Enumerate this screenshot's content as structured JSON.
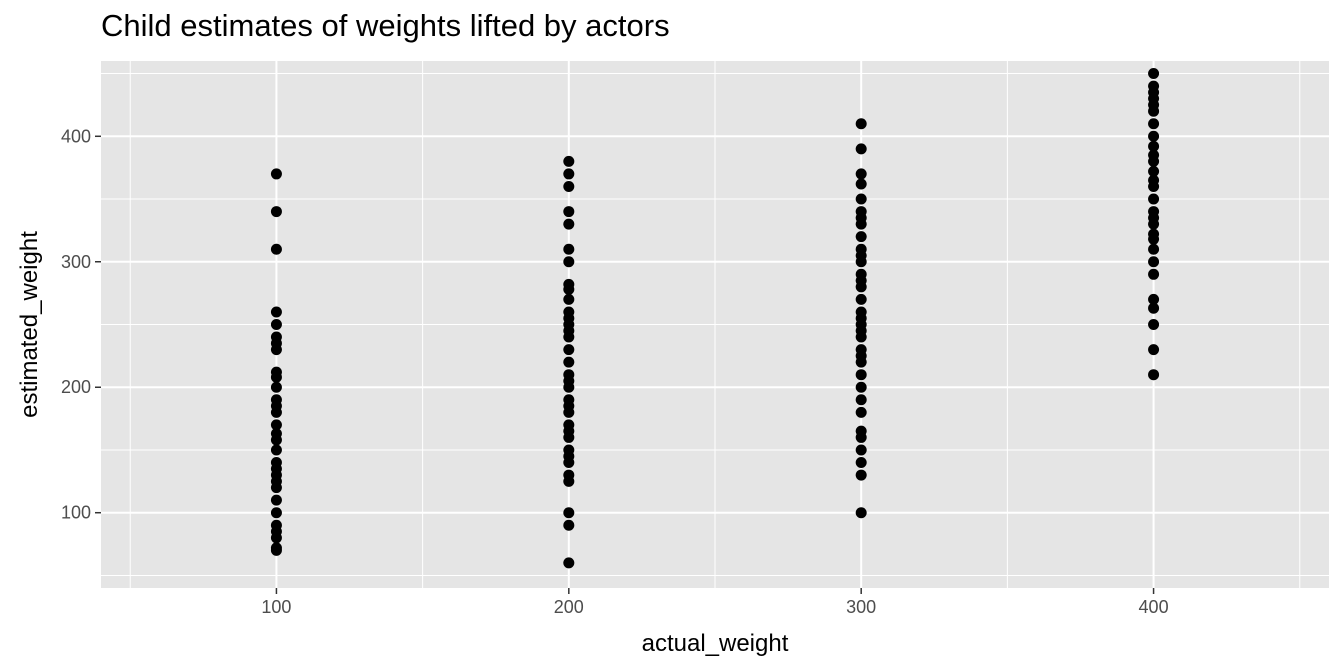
{
  "chart_data": {
    "type": "scatter",
    "title": "Child estimates of weights lifted by actors",
    "xlabel": "actual_weight",
    "ylabel": "estimated_weight",
    "xlim": [
      40,
      460
    ],
    "ylim": [
      40,
      460
    ],
    "xticks": [
      100,
      200,
      300,
      400
    ],
    "yticks": [
      100,
      200,
      300,
      400
    ],
    "grid": true,
    "colors": {
      "panel": "#E5E5E5",
      "grid": "#FFFFFF",
      "point": "#000000",
      "tick": "#4D4D4D"
    },
    "points": [
      {
        "x": 100,
        "y": 370
      },
      {
        "x": 100,
        "y": 340
      },
      {
        "x": 100,
        "y": 310
      },
      {
        "x": 100,
        "y": 260
      },
      {
        "x": 100,
        "y": 250
      },
      {
        "x": 100,
        "y": 240
      },
      {
        "x": 100,
        "y": 235
      },
      {
        "x": 100,
        "y": 230
      },
      {
        "x": 100,
        "y": 212
      },
      {
        "x": 100,
        "y": 208
      },
      {
        "x": 100,
        "y": 200
      },
      {
        "x": 100,
        "y": 190
      },
      {
        "x": 100,
        "y": 185
      },
      {
        "x": 100,
        "y": 180
      },
      {
        "x": 100,
        "y": 170
      },
      {
        "x": 100,
        "y": 163
      },
      {
        "x": 100,
        "y": 158
      },
      {
        "x": 100,
        "y": 150
      },
      {
        "x": 100,
        "y": 140
      },
      {
        "x": 100,
        "y": 135
      },
      {
        "x": 100,
        "y": 130
      },
      {
        "x": 100,
        "y": 125
      },
      {
        "x": 100,
        "y": 120
      },
      {
        "x": 100,
        "y": 110
      },
      {
        "x": 100,
        "y": 100
      },
      {
        "x": 100,
        "y": 90
      },
      {
        "x": 100,
        "y": 85
      },
      {
        "x": 100,
        "y": 80
      },
      {
        "x": 100,
        "y": 72
      },
      {
        "x": 100,
        "y": 70
      },
      {
        "x": 200,
        "y": 380
      },
      {
        "x": 200,
        "y": 370
      },
      {
        "x": 200,
        "y": 360
      },
      {
        "x": 200,
        "y": 340
      },
      {
        "x": 200,
        "y": 330
      },
      {
        "x": 200,
        "y": 310
      },
      {
        "x": 200,
        "y": 300
      },
      {
        "x": 200,
        "y": 282
      },
      {
        "x": 200,
        "y": 278
      },
      {
        "x": 200,
        "y": 270
      },
      {
        "x": 200,
        "y": 260
      },
      {
        "x": 200,
        "y": 255
      },
      {
        "x": 200,
        "y": 250
      },
      {
        "x": 200,
        "y": 245
      },
      {
        "x": 200,
        "y": 240
      },
      {
        "x": 200,
        "y": 230
      },
      {
        "x": 200,
        "y": 220
      },
      {
        "x": 200,
        "y": 210
      },
      {
        "x": 200,
        "y": 205
      },
      {
        "x": 200,
        "y": 200
      },
      {
        "x": 200,
        "y": 190
      },
      {
        "x": 200,
        "y": 185
      },
      {
        "x": 200,
        "y": 180
      },
      {
        "x": 200,
        "y": 170
      },
      {
        "x": 200,
        "y": 165
      },
      {
        "x": 200,
        "y": 160
      },
      {
        "x": 200,
        "y": 150
      },
      {
        "x": 200,
        "y": 145
      },
      {
        "x": 200,
        "y": 140
      },
      {
        "x": 200,
        "y": 130
      },
      {
        "x": 200,
        "y": 125
      },
      {
        "x": 200,
        "y": 100
      },
      {
        "x": 200,
        "y": 90
      },
      {
        "x": 200,
        "y": 60
      },
      {
        "x": 300,
        "y": 410
      },
      {
        "x": 300,
        "y": 390
      },
      {
        "x": 300,
        "y": 370
      },
      {
        "x": 300,
        "y": 362
      },
      {
        "x": 300,
        "y": 350
      },
      {
        "x": 300,
        "y": 340
      },
      {
        "x": 300,
        "y": 335
      },
      {
        "x": 300,
        "y": 330
      },
      {
        "x": 300,
        "y": 320
      },
      {
        "x": 300,
        "y": 310
      },
      {
        "x": 300,
        "y": 305
      },
      {
        "x": 300,
        "y": 300
      },
      {
        "x": 300,
        "y": 290
      },
      {
        "x": 300,
        "y": 285
      },
      {
        "x": 300,
        "y": 280
      },
      {
        "x": 300,
        "y": 270
      },
      {
        "x": 300,
        "y": 260
      },
      {
        "x": 300,
        "y": 255
      },
      {
        "x": 300,
        "y": 250
      },
      {
        "x": 300,
        "y": 245
      },
      {
        "x": 300,
        "y": 240
      },
      {
        "x": 300,
        "y": 230
      },
      {
        "x": 300,
        "y": 225
      },
      {
        "x": 300,
        "y": 220
      },
      {
        "x": 300,
        "y": 210
      },
      {
        "x": 300,
        "y": 200
      },
      {
        "x": 300,
        "y": 190
      },
      {
        "x": 300,
        "y": 180
      },
      {
        "x": 300,
        "y": 165
      },
      {
        "x": 300,
        "y": 160
      },
      {
        "x": 300,
        "y": 150
      },
      {
        "x": 300,
        "y": 140
      },
      {
        "x": 300,
        "y": 130
      },
      {
        "x": 300,
        "y": 100
      },
      {
        "x": 400,
        "y": 450
      },
      {
        "x": 400,
        "y": 440
      },
      {
        "x": 400,
        "y": 435
      },
      {
        "x": 400,
        "y": 430
      },
      {
        "x": 400,
        "y": 425
      },
      {
        "x": 400,
        "y": 420
      },
      {
        "x": 400,
        "y": 410
      },
      {
        "x": 400,
        "y": 400
      },
      {
        "x": 400,
        "y": 392
      },
      {
        "x": 400,
        "y": 385
      },
      {
        "x": 400,
        "y": 380
      },
      {
        "x": 400,
        "y": 372
      },
      {
        "x": 400,
        "y": 365
      },
      {
        "x": 400,
        "y": 360
      },
      {
        "x": 400,
        "y": 350
      },
      {
        "x": 400,
        "y": 340
      },
      {
        "x": 400,
        "y": 335
      },
      {
        "x": 400,
        "y": 330
      },
      {
        "x": 400,
        "y": 322
      },
      {
        "x": 400,
        "y": 318
      },
      {
        "x": 400,
        "y": 310
      },
      {
        "x": 400,
        "y": 300
      },
      {
        "x": 400,
        "y": 290
      },
      {
        "x": 400,
        "y": 270
      },
      {
        "x": 400,
        "y": 263
      },
      {
        "x": 400,
        "y": 250
      },
      {
        "x": 400,
        "y": 230
      },
      {
        "x": 400,
        "y": 210
      }
    ]
  }
}
